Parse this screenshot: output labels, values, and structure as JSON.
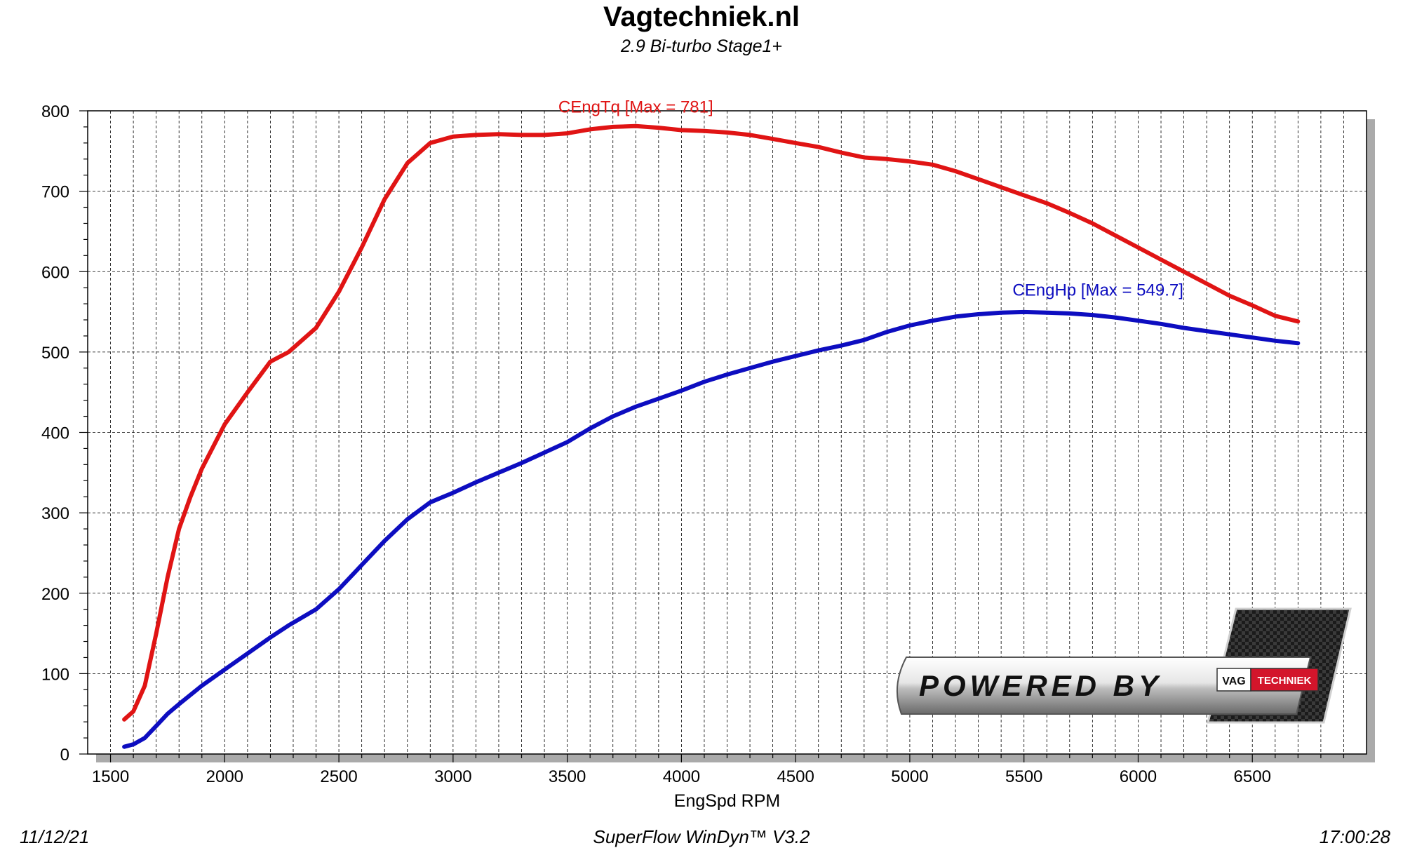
{
  "header": {
    "title": "Vagtechniek.nl",
    "subtitle": "2.9 Bi-turbo Stage1+"
  },
  "footer": {
    "date": "11/12/21",
    "software": "SuperFlow WinDyn™  V3.2",
    "time": "17:00:28"
  },
  "logo": {
    "text": "POWERED BY",
    "badge_left": "VAG",
    "badge_right": "TECHNIEK"
  },
  "chart_data": {
    "type": "line",
    "xlabel": "EngSpd RPM",
    "ylabel": "",
    "xlim": [
      1400,
      7000
    ],
    "ylim": [
      0,
      800
    ],
    "x_ticks": [
      1500,
      2000,
      2500,
      3000,
      3500,
      4000,
      4500,
      5000,
      5500,
      6000,
      6500
    ],
    "y_ticks": [
      0,
      100,
      200,
      300,
      400,
      500,
      600,
      700,
      800
    ],
    "grid": true,
    "series": [
      {
        "name": "CEngTq [Max = 781]",
        "color": "#e01414",
        "x": [
          1560,
          1600,
          1650,
          1700,
          1750,
          1800,
          1850,
          1900,
          2000,
          2100,
          2200,
          2280,
          2400,
          2500,
          2600,
          2700,
          2800,
          2900,
          3000,
          3100,
          3200,
          3300,
          3400,
          3500,
          3600,
          3700,
          3800,
          3900,
          4000,
          4100,
          4200,
          4300,
          4400,
          4500,
          4600,
          4700,
          4800,
          4900,
          5000,
          5100,
          5200,
          5300,
          5400,
          5500,
          5600,
          5700,
          5800,
          5900,
          6000,
          6100,
          6200,
          6300,
          6400,
          6500,
          6600,
          6700
        ],
        "y": [
          43,
          53,
          85,
          150,
          220,
          280,
          320,
          355,
          410,
          450,
          488,
          500,
          530,
          575,
          630,
          690,
          735,
          760,
          768,
          770,
          771,
          770,
          770,
          772,
          777,
          780,
          781,
          779,
          776,
          775,
          773,
          770,
          765,
          760,
          755,
          748,
          742,
          740,
          737,
          733,
          725,
          715,
          705,
          695,
          685,
          673,
          660,
          645,
          630,
          615,
          600,
          585,
          570,
          558,
          545,
          538
        ]
      },
      {
        "name": "CEngHp [Max = 549.7]",
        "color": "#0d0dc0",
        "x": [
          1560,
          1600,
          1650,
          1700,
          1750,
          1800,
          1900,
          2000,
          2100,
          2200,
          2280,
          2400,
          2500,
          2600,
          2700,
          2800,
          2900,
          3000,
          3100,
          3200,
          3300,
          3400,
          3500,
          3600,
          3700,
          3800,
          3900,
          4000,
          4100,
          4200,
          4300,
          4400,
          4500,
          4600,
          4700,
          4800,
          4900,
          5000,
          5100,
          5200,
          5300,
          5400,
          5500,
          5600,
          5700,
          5800,
          5900,
          6000,
          6100,
          6200,
          6300,
          6400,
          6500,
          6600,
          6700
        ],
        "y": [
          9,
          12,
          20,
          35,
          50,
          62,
          85,
          105,
          125,
          145,
          160,
          180,
          205,
          235,
          265,
          292,
          313,
          325,
          338,
          350,
          362,
          375,
          388,
          405,
          420,
          432,
          442,
          452,
          463,
          472,
          480,
          488,
          495,
          502,
          508,
          515,
          525,
          533,
          539,
          544,
          547,
          549,
          549.7,
          549,
          548,
          546,
          543,
          539,
          535,
          530,
          526,
          522,
          518,
          514,
          511
        ]
      }
    ]
  },
  "colors": {
    "torque": "#e01414",
    "power": "#0d0dc0",
    "grid": "#000000",
    "shadow": "#aaaaaa"
  }
}
